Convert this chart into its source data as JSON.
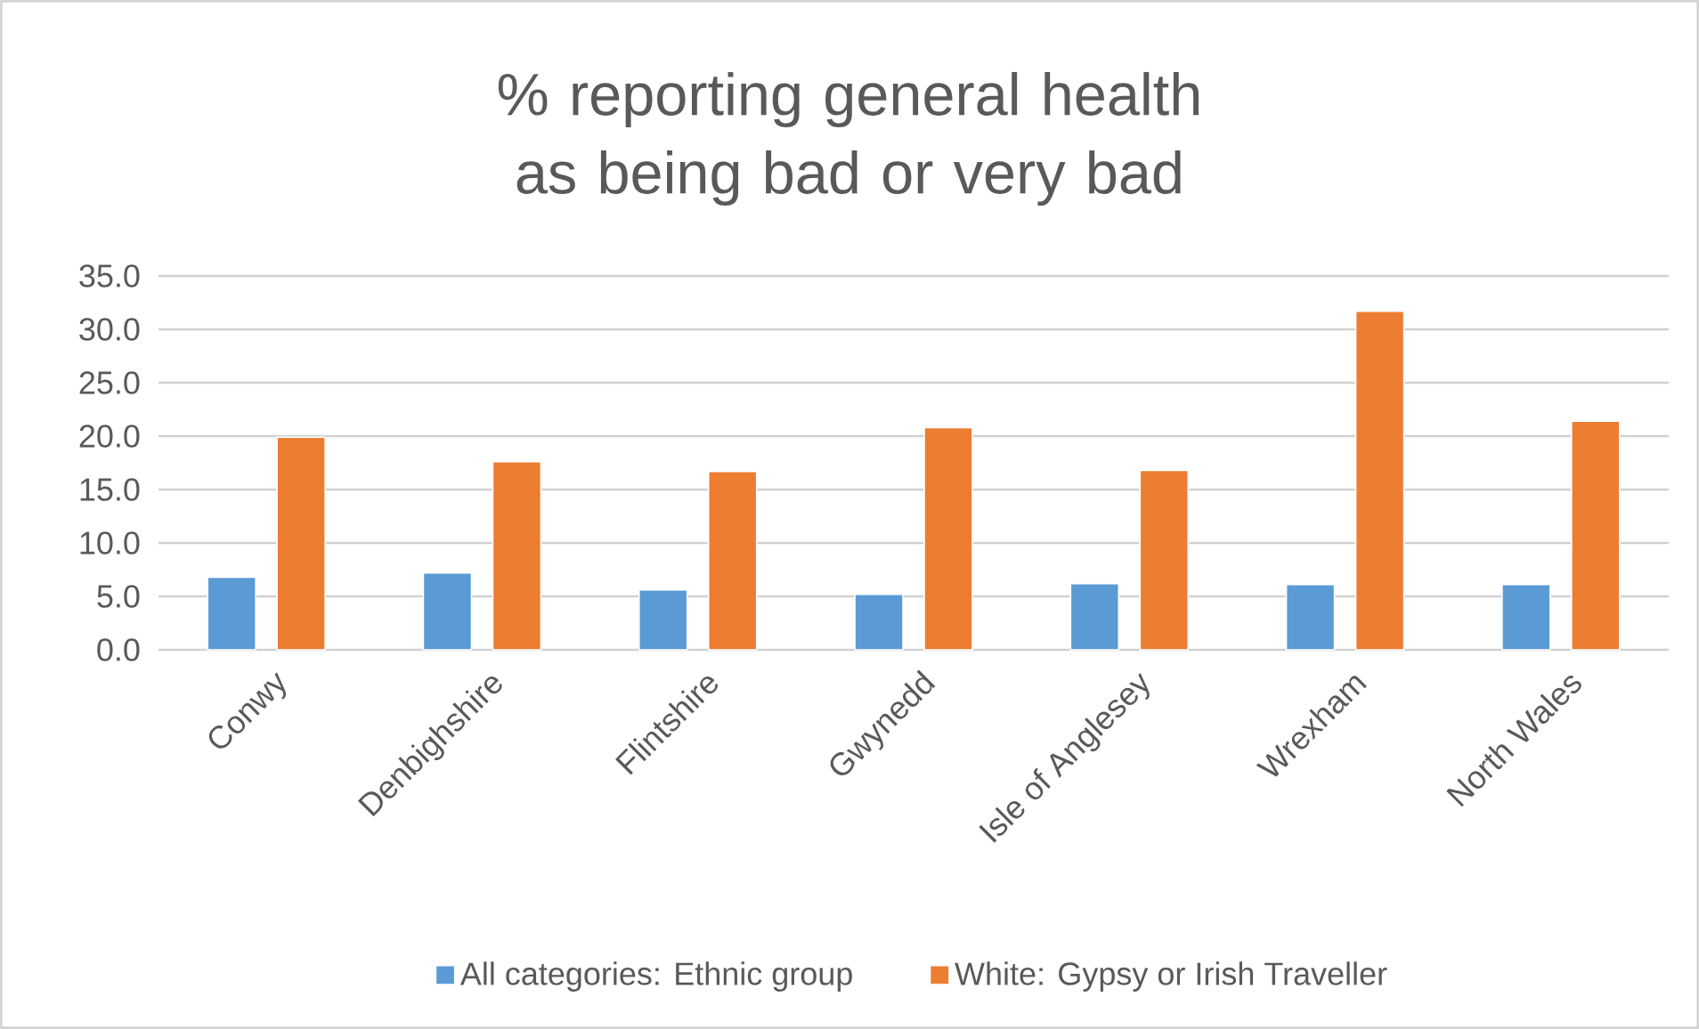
{
  "chart_data": {
    "type": "bar",
    "title": "% reporting general health as being bad or very bad",
    "categories": [
      "Conwy",
      "Denbighshire",
      "Flintshire",
      "Gwynedd",
      "Isle of Anglesey",
      "Wrexham",
      "North Wales"
    ],
    "series": [
      {
        "name": "All categories: Ethnic group",
        "color": "#5b9bd5",
        "values": [
          6.8,
          7.2,
          5.6,
          5.2,
          6.2,
          6.1,
          6.1
        ]
      },
      {
        "name": "White: Gypsy or Irish Traveller",
        "color": "#ed7d31",
        "values": [
          19.9,
          17.6,
          16.7,
          20.8,
          16.8,
          31.7,
          21.4
        ]
      }
    ],
    "ylim": [
      0,
      35
    ],
    "yticks": [
      {
        "value": 0,
        "label": "0.0"
      },
      {
        "value": 5,
        "label": "5.0"
      },
      {
        "value": 10,
        "label": "10.0"
      },
      {
        "value": 15,
        "label": "15.0"
      },
      {
        "value": 20,
        "label": "20.0"
      },
      {
        "value": 25,
        "label": "25.0"
      },
      {
        "value": 30,
        "label": "30.0"
      },
      {
        "value": 35,
        "label": "35.0"
      }
    ],
    "grid": "y",
    "legend": "bottom"
  }
}
